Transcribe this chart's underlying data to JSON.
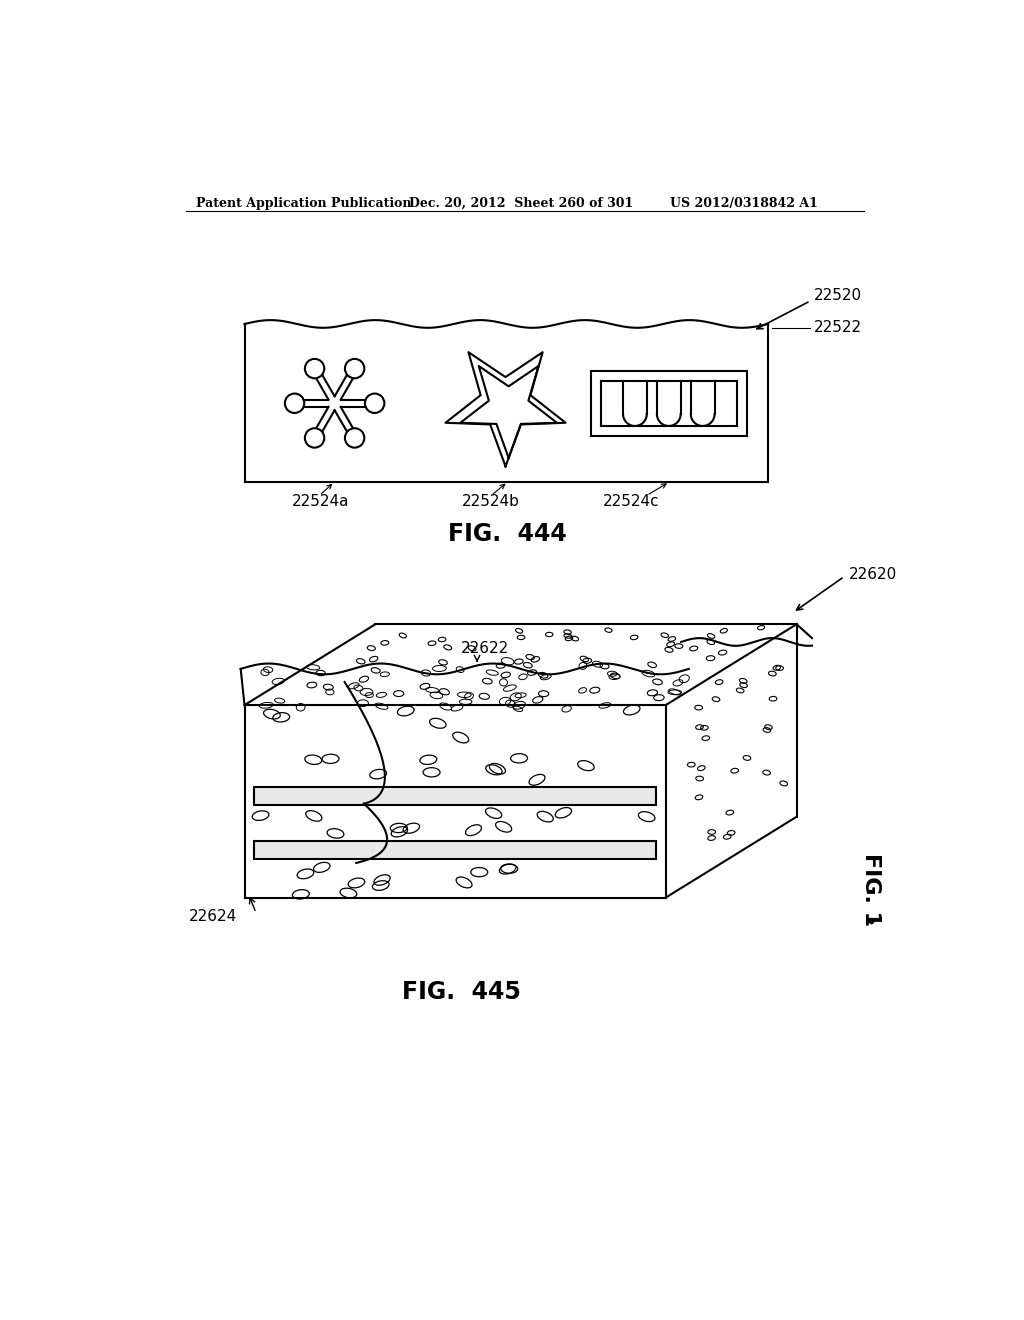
{
  "header_left": "Patent Application Publication",
  "header_middle": "Dec. 20, 2012  Sheet 260 of 301",
  "header_right": "US 2012/0318842 A1",
  "fig444_label": "FIG.  444",
  "fig445_label": "FIG.  445",
  "fig1_label": "FIG. 1",
  "label_22520": "22520",
  "label_22522": "22522",
  "label_22524a": "22524a",
  "label_22524b": "22524b",
  "label_22524c": "22524c",
  "label_22620": "22620",
  "label_22622": "22622",
  "label_22624": "22624",
  "line_color": "#000000",
  "bg_color": "#ffffff",
  "lw": 1.5,
  "lw_thin": 0.8
}
